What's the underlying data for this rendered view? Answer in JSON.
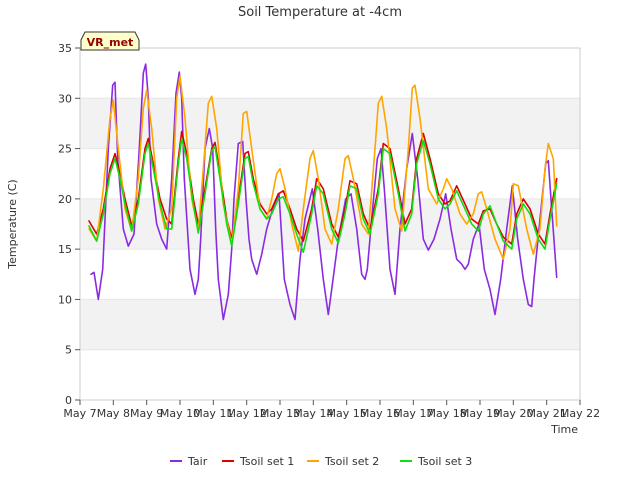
{
  "chart_data": {
    "type": "line",
    "title": "Soil Temperature at -4cm",
    "xlabel": "Time",
    "ylabel": "Temperature (C)",
    "annotation": "VR_met",
    "xlim": [
      7,
      22
    ],
    "ylim": [
      0,
      35
    ],
    "x_ticks": [
      7,
      8,
      9,
      10,
      11,
      12,
      13,
      14,
      15,
      16,
      17,
      18,
      19,
      20,
      21,
      22
    ],
    "x_tick_labels": [
      "May 7",
      "May 8",
      "May 9",
      "May 10",
      "May 11",
      "May 12",
      "May 13",
      "May 14",
      "May 15",
      "May 16",
      "May 17",
      "May 18",
      "May 19",
      "May 20",
      "May 21",
      "May 22"
    ],
    "y_ticks": [
      0,
      5,
      10,
      15,
      20,
      25,
      30,
      35
    ],
    "grid": "horizontal bands",
    "legend": "bottom-center",
    "series": [
      {
        "name": "Tair",
        "color": "#8a2be2",
        "x": [
          7.33,
          7.42,
          7.55,
          7.68,
          7.85,
          7.98,
          8.05,
          8.13,
          8.3,
          8.45,
          8.62,
          8.78,
          8.9,
          8.97,
          9.05,
          9.13,
          9.3,
          9.45,
          9.6,
          9.75,
          9.88,
          9.98,
          10.05,
          10.13,
          10.3,
          10.45,
          10.55,
          10.62,
          10.75,
          10.88,
          10.98,
          11.07,
          11.15,
          11.3,
          11.45,
          11.55,
          11.62,
          11.75,
          11.88,
          11.98,
          12.07,
          12.15,
          12.3,
          12.45,
          12.6,
          12.78,
          12.97,
          13.13,
          13.3,
          13.45,
          13.6,
          13.75,
          13.97,
          14.13,
          14.3,
          14.45,
          14.55,
          14.75,
          14.97,
          15.13,
          15.3,
          15.45,
          15.55,
          15.62,
          15.75,
          15.92,
          16.03,
          16.13,
          16.3,
          16.45,
          16.6,
          16.8,
          16.97,
          17.13,
          17.3,
          17.45,
          17.62,
          17.8,
          17.97,
          18.13,
          18.3,
          18.45,
          18.55,
          18.65,
          18.8,
          18.97,
          19.13,
          19.3,
          19.45,
          19.62,
          19.8,
          19.97,
          20.13,
          20.3,
          20.45,
          20.55,
          20.62,
          20.8,
          20.97,
          21.05,
          21.13,
          21.3
        ],
        "y": [
          12.5,
          12.7,
          10.0,
          13.0,
          25.0,
          31.3,
          31.6,
          24.0,
          17.0,
          15.3,
          16.5,
          25.0,
          32.5,
          33.4,
          30.0,
          22.0,
          17.5,
          16.0,
          15.0,
          22.0,
          30.5,
          32.6,
          30.0,
          22.0,
          13.0,
          10.5,
          12.0,
          16.0,
          25.0,
          27.0,
          25.0,
          17.0,
          12.0,
          8.0,
          10.5,
          15.0,
          20.0,
          25.5,
          25.7,
          20.0,
          16.0,
          14.0,
          12.5,
          14.5,
          17.0,
          19.0,
          20.5,
          12.0,
          9.5,
          8.0,
          14.0,
          18.0,
          21.0,
          17.0,
          12.0,
          8.5,
          11.0,
          16.0,
          20.0,
          20.5,
          17.0,
          12.5,
          12.0,
          13.0,
          18.0,
          24.0,
          25.0,
          21.0,
          13.0,
          10.5,
          17.0,
          23.0,
          26.5,
          22.0,
          16.0,
          14.9,
          16.0,
          18.0,
          20.5,
          17.0,
          14.0,
          13.5,
          13.0,
          13.5,
          16.0,
          17.5,
          13.0,
          11.0,
          8.5,
          12.0,
          17.0,
          21.3,
          16.0,
          12.0,
          9.5,
          9.3,
          12.0,
          18.0,
          23.5,
          23.8,
          20.0,
          12.2
        ]
      },
      {
        "name": "Tsoil set 1",
        "color": "#dd0000",
        "x": [
          7.27,
          7.5,
          7.7,
          7.9,
          8.05,
          8.2,
          8.35,
          8.55,
          8.75,
          8.95,
          9.05,
          9.2,
          9.4,
          9.6,
          9.75,
          9.95,
          10.05,
          10.2,
          10.4,
          10.55,
          10.75,
          10.95,
          11.05,
          11.2,
          11.4,
          11.55,
          11.75,
          11.95,
          12.05,
          12.2,
          12.4,
          12.6,
          12.75,
          12.95,
          13.1,
          13.3,
          13.5,
          13.7,
          13.95,
          14.1,
          14.3,
          14.55,
          14.75,
          14.95,
          15.1,
          15.3,
          15.5,
          15.7,
          15.95,
          16.1,
          16.3,
          16.55,
          16.75,
          16.95,
          17.1,
          17.3,
          17.5,
          17.75,
          17.95,
          18.1,
          18.3,
          18.55,
          18.75,
          18.95,
          19.1,
          19.3,
          19.5,
          19.7,
          19.95,
          20.1,
          20.3,
          20.5,
          20.75,
          20.95,
          21.1,
          21.3
        ],
        "y": [
          17.8,
          16.5,
          19.0,
          23.0,
          24.5,
          22.5,
          20.0,
          17.3,
          20.0,
          25.0,
          26.0,
          23.5,
          20.0,
          18.0,
          17.5,
          24.0,
          26.7,
          24.5,
          20.0,
          17.5,
          21.0,
          25.0,
          25.6,
          22.5,
          18.0,
          16.0,
          20.0,
          24.5,
          24.7,
          22.0,
          19.5,
          18.5,
          19.0,
          20.5,
          20.8,
          19.0,
          17.0,
          15.8,
          19.0,
          22.0,
          21.0,
          17.5,
          16.2,
          19.0,
          21.8,
          21.5,
          18.5,
          17.0,
          21.0,
          25.5,
          25.0,
          21.0,
          17.5,
          19.0,
          24.0,
          26.5,
          24.0,
          20.5,
          19.5,
          19.8,
          21.3,
          19.5,
          18.0,
          17.5,
          18.8,
          19.0,
          17.5,
          16.2,
          15.5,
          18.5,
          20.0,
          19.0,
          16.5,
          15.5,
          18.5,
          22.0
        ]
      },
      {
        "name": "Tsoil set 2",
        "color": "#ffa500",
        "x": [
          7.27,
          7.5,
          7.7,
          7.9,
          8.0,
          8.15,
          8.35,
          8.55,
          8.75,
          8.9,
          9.0,
          9.15,
          9.35,
          9.55,
          9.75,
          9.9,
          10.0,
          10.15,
          10.35,
          10.55,
          10.7,
          10.85,
          10.95,
          11.1,
          11.3,
          11.55,
          11.75,
          11.9,
          12.0,
          12.15,
          12.4,
          12.6,
          12.75,
          12.9,
          13.0,
          13.15,
          13.35,
          13.55,
          13.7,
          13.9,
          14.0,
          14.15,
          14.35,
          14.55,
          14.75,
          14.95,
          15.05,
          15.2,
          15.45,
          15.65,
          15.85,
          15.95,
          16.05,
          16.2,
          16.45,
          16.65,
          16.85,
          16.97,
          17.05,
          17.2,
          17.45,
          17.7,
          17.9,
          18.0,
          18.15,
          18.4,
          18.6,
          18.8,
          18.95,
          19.05,
          19.2,
          19.45,
          19.7,
          19.9,
          20.0,
          20.15,
          20.4,
          20.6,
          20.8,
          20.95,
          21.05,
          21.2,
          21.3
        ],
        "y": [
          17.0,
          15.8,
          21.0,
          28.0,
          29.8,
          25.0,
          19.0,
          16.8,
          22.0,
          29.0,
          30.8,
          27.0,
          20.0,
          17.0,
          19.0,
          30.0,
          32.2,
          28.0,
          20.0,
          16.8,
          23.0,
          29.5,
          30.2,
          27.0,
          19.5,
          15.5,
          21.0,
          28.5,
          28.7,
          25.0,
          19.0,
          18.0,
          20.0,
          22.5,
          23.0,
          21.0,
          17.5,
          14.8,
          19.0,
          24.0,
          24.8,
          22.0,
          17.0,
          15.5,
          19.0,
          24.0,
          24.3,
          22.0,
          17.5,
          16.5,
          25.0,
          29.5,
          30.2,
          27.0,
          19.0,
          16.8,
          25.0,
          31.0,
          31.3,
          28.0,
          21.0,
          19.5,
          21.0,
          22.0,
          21.0,
          18.5,
          17.5,
          18.5,
          20.5,
          20.7,
          19.0,
          16.0,
          14.0,
          17.0,
          21.5,
          21.3,
          17.0,
          14.5,
          17.0,
          23.0,
          25.5,
          24.0,
          17.3
        ]
      },
      {
        "name": "Tsoil set 3",
        "color": "#11dd11",
        "x": [
          7.27,
          7.5,
          7.7,
          7.9,
          8.05,
          8.2,
          8.35,
          8.55,
          8.75,
          8.95,
          9.05,
          9.2,
          9.4,
          9.6,
          9.75,
          9.95,
          10.05,
          10.2,
          10.4,
          10.55,
          10.75,
          10.95,
          11.05,
          11.2,
          11.4,
          11.55,
          11.75,
          11.95,
          12.05,
          12.2,
          12.4,
          12.6,
          12.75,
          12.95,
          13.1,
          13.3,
          13.5,
          13.7,
          13.95,
          14.1,
          14.3,
          14.55,
          14.75,
          14.95,
          15.1,
          15.3,
          15.5,
          15.7,
          15.95,
          16.1,
          16.3,
          16.55,
          16.75,
          16.95,
          17.1,
          17.3,
          17.5,
          17.75,
          17.95,
          18.1,
          18.3,
          18.55,
          18.75,
          18.95,
          19.1,
          19.3,
          19.5,
          19.7,
          19.95,
          20.1,
          20.3,
          20.5,
          20.75,
          20.95,
          21.1,
          21.3
        ],
        "y": [
          17.3,
          15.8,
          18.5,
          22.5,
          24.0,
          22.0,
          19.5,
          16.8,
          19.5,
          24.5,
          25.5,
          23.0,
          19.5,
          17.0,
          17.0,
          23.5,
          26.0,
          24.0,
          19.5,
          16.6,
          20.5,
          24.8,
          25.2,
          22.0,
          17.5,
          15.3,
          19.5,
          24.0,
          24.2,
          21.5,
          19.0,
          18.0,
          18.5,
          20.0,
          20.2,
          18.5,
          16.5,
          14.7,
          18.5,
          21.3,
          20.5,
          17.0,
          15.6,
          18.5,
          21.3,
          21.0,
          18.0,
          16.5,
          20.5,
          25.0,
          24.5,
          20.5,
          16.8,
          18.5,
          23.5,
          25.8,
          23.5,
          20.0,
          19.0,
          19.5,
          20.8,
          19.0,
          17.5,
          16.8,
          18.5,
          19.3,
          17.5,
          15.8,
          15.0,
          18.0,
          19.5,
          18.5,
          16.0,
          15.0,
          18.0,
          21.5
        ]
      }
    ]
  }
}
